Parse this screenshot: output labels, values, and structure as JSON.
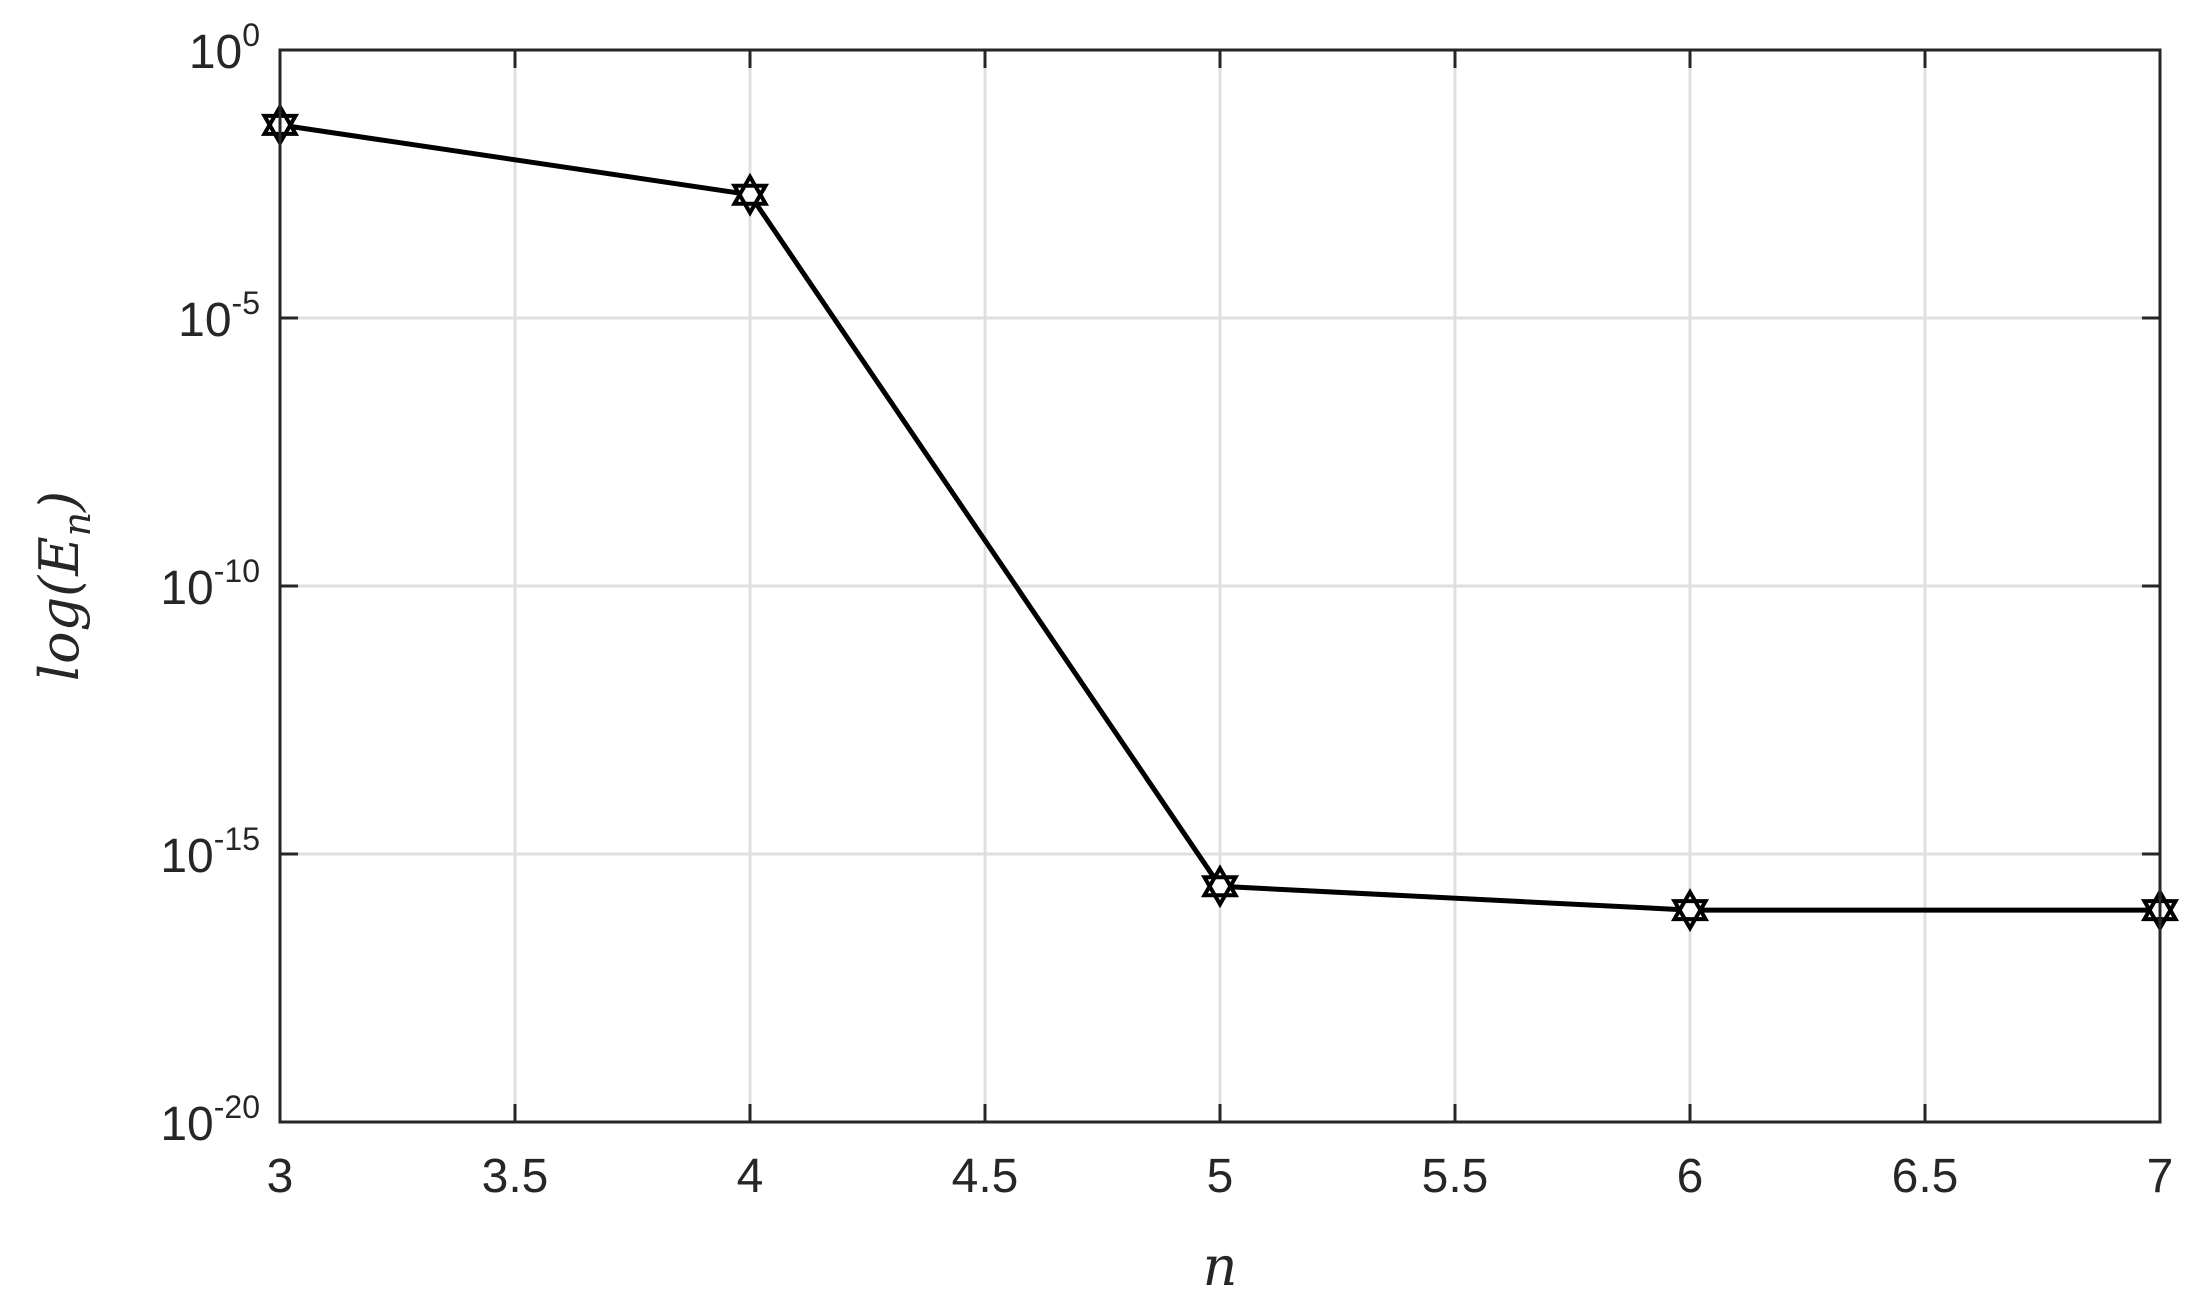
{
  "chart_data": {
    "type": "line",
    "title": "",
    "xlabel": "n",
    "ylabel": "log(E",
    "ylabel_subscript": "n",
    "ylabel_close": ")",
    "x_scale": "linear",
    "y_scale": "log",
    "xlim": [
      3,
      7
    ],
    "ylim": [
      1e-20,
      1
    ],
    "grid": true,
    "legend": "none",
    "x_ticks": [
      {
        "value": 3,
        "label": "3"
      },
      {
        "value": 3.5,
        "label": "3.5"
      },
      {
        "value": 4,
        "label": "4"
      },
      {
        "value": 4.5,
        "label": "4.5"
      },
      {
        "value": 5,
        "label": "5"
      },
      {
        "value": 5.5,
        "label": "5.5"
      },
      {
        "value": 6,
        "label": "6"
      },
      {
        "value": 6.5,
        "label": "6.5"
      },
      {
        "value": 7,
        "label": "7"
      }
    ],
    "y_ticks": [
      {
        "value": 1,
        "base": "10",
        "exp": "0"
      },
      {
        "value": 1e-05,
        "base": "10",
        "exp": "-5"
      },
      {
        "value": 1e-10,
        "base": "10",
        "exp": "-10"
      },
      {
        "value": 1e-15,
        "base": "10",
        "exp": "-15"
      },
      {
        "value": 1e-20,
        "base": "10",
        "exp": "-20"
      }
    ],
    "series": [
      {
        "color": "#000000",
        "marker": "hexagram",
        "x": [
          3,
          4,
          5,
          6,
          7
        ],
        "y": [
          0.04,
          0.002,
          2.5e-16,
          9e-17,
          9e-17
        ]
      }
    ]
  }
}
